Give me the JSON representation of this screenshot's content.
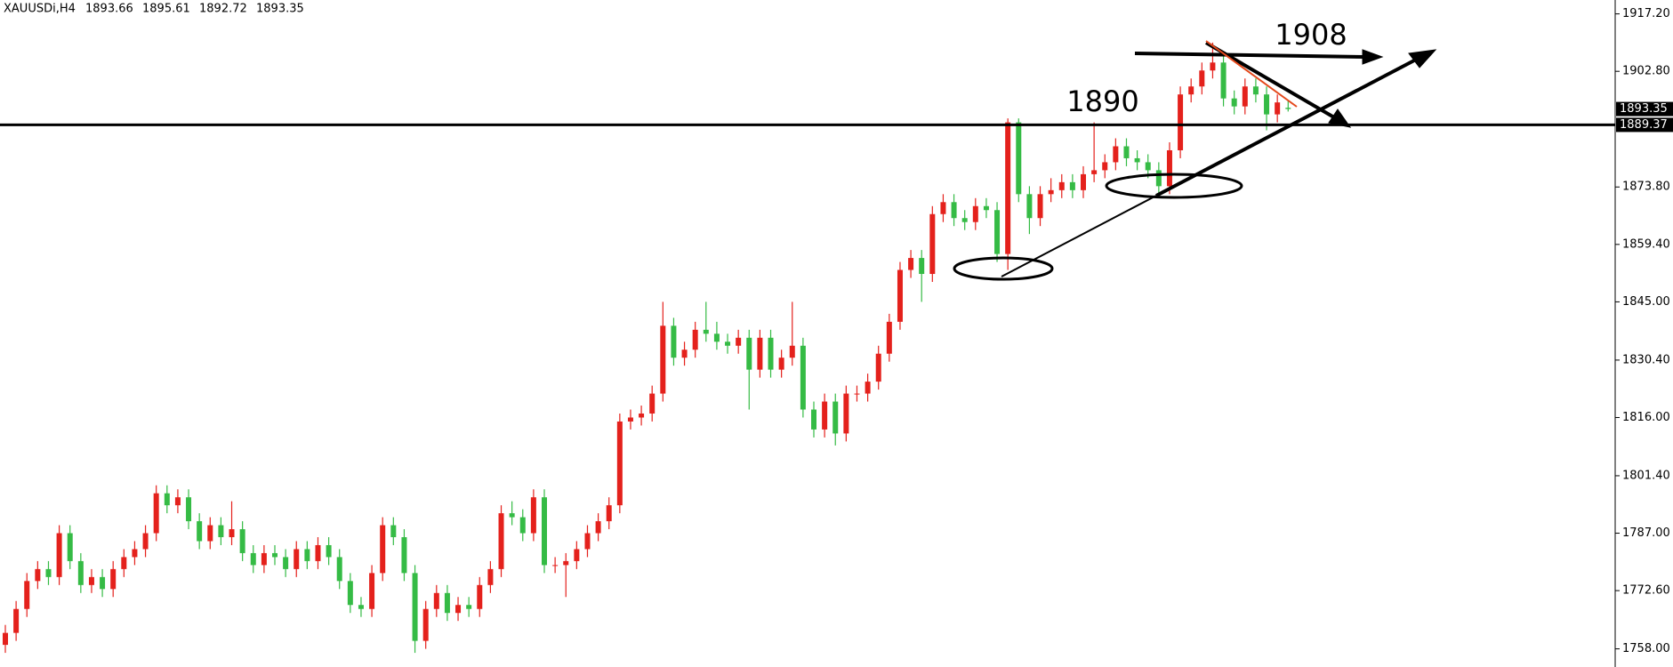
{
  "chart_data": {
    "type": "candlestick",
    "symbol": "XAUUSDi,H4",
    "up_color": "#e4211c",
    "down_color": "#35bb45",
    "ylim": [
      1753.45,
      1920.68
    ],
    "yticks": [
      {
        "value": 1917.2,
        "label": "1917.20"
      },
      {
        "value": 1902.8,
        "label": "1902.80"
      },
      {
        "value": 1873.8,
        "label": "1873.80"
      },
      {
        "value": 1859.4,
        "label": "1859.40"
      },
      {
        "value": 1845.0,
        "label": "1845.00"
      },
      {
        "value": 1830.4,
        "label": "1830.40"
      },
      {
        "value": 1816.0,
        "label": "1816.00"
      },
      {
        "value": 1801.4,
        "label": "1801.40"
      },
      {
        "value": 1787.0,
        "label": "1787.00"
      },
      {
        "value": 1772.6,
        "label": "1772.60"
      },
      {
        "value": 1758.0,
        "label": "1758.00"
      }
    ],
    "hline": 1889.37,
    "annotations": [
      "1890",
      "1908"
    ],
    "open": [
      1759,
      1762,
      1768,
      1775,
      1778,
      1776,
      1787,
      1780,
      1774,
      1776,
      1773,
      1778,
      1781,
      1783,
      1787,
      1797,
      1794,
      1796,
      1790,
      1785,
      1789,
      1786,
      1788,
      1782,
      1779,
      1782,
      1781,
      1778,
      1783,
      1780,
      1784,
      1781,
      1775,
      1769,
      1768,
      1777,
      1789,
      1786,
      1777,
      1760,
      1768,
      1772,
      1767,
      1769,
      1768,
      1774,
      1778,
      1792,
      1791,
      1787,
      1796,
      1779,
      1779,
      1780,
      1783,
      1787,
      1790,
      1794,
      1815,
      1816,
      1817,
      1822,
      1839,
      1831,
      1833,
      1838,
      1837,
      1835,
      1834,
      1836,
      1828,
      1836,
      1828,
      1831,
      1834,
      1818,
      1813,
      1820,
      1812,
      1822,
      1822,
      1825,
      1832,
      1840,
      1853,
      1856,
      1852,
      1867,
      1870,
      1866,
      1865,
      1869,
      1868,
      1857,
      1890,
      1872,
      1866,
      1872,
      1873,
      1875,
      1873,
      1877,
      1878,
      1880,
      1884,
      1881,
      1880,
      1878,
      1874,
      1883,
      1897,
      1899,
      1903,
      1905,
      1896,
      1894,
      1899,
      1897,
      1892,
      1893.66
    ],
    "high": [
      1764,
      1770,
      1777,
      1780,
      1780,
      1789,
      1789,
      1782,
      1778,
      1778,
      1780,
      1783,
      1785,
      1789,
      1799,
      1799,
      1798,
      1798,
      1792,
      1791,
      1791,
      1795,
      1790,
      1784,
      1784,
      1784,
      1783,
      1785,
      1785,
      1786,
      1786,
      1783,
      1777,
      1771,
      1779,
      1791,
      1791,
      1788,
      1779,
      1770,
      1774,
      1774,
      1771,
      1771,
      1776,
      1780,
      1794,
      1795,
      1793,
      1798,
      1798,
      1781,
      1782,
      1785,
      1789,
      1792,
      1796,
      1817,
      1818,
      1819,
      1824,
      1845,
      1841,
      1835,
      1840,
      1845,
      1840,
      1837,
      1838,
      1838,
      1838,
      1838,
      1833,
      1845,
      1836,
      1820,
      1822,
      1822,
      1824,
      1824,
      1827,
      1834,
      1842,
      1855,
      1858,
      1858,
      1869,
      1872,
      1872,
      1868,
      1871,
      1871,
      1870,
      1891,
      1891,
      1874,
      1874,
      1876,
      1877,
      1877,
      1879,
      1890,
      1882,
      1886,
      1886,
      1883,
      1882,
      1880,
      1885,
      1899,
      1901,
      1905,
      1910,
      1907,
      1898,
      1901,
      1901,
      1899,
      1897,
      1895.61
    ],
    "low": [
      1757,
      1760,
      1766,
      1773,
      1774,
      1774,
      1778,
      1772,
      1772,
      1771,
      1771,
      1776,
      1779,
      1781,
      1785,
      1792,
      1792,
      1788,
      1783,
      1783,
      1784,
      1784,
      1780,
      1777,
      1777,
      1779,
      1776,
      1776,
      1778,
      1778,
      1779,
      1773,
      1767,
      1766,
      1766,
      1775,
      1784,
      1775,
      1757,
      1758,
      1766,
      1765,
      1765,
      1766,
      1766,
      1772,
      1776,
      1789,
      1785,
      1785,
      1777,
      1777,
      1771,
      1778,
      1781,
      1785,
      1788,
      1792,
      1813,
      1814,
      1815,
      1820,
      1829,
      1829,
      1831,
      1835,
      1833,
      1832,
      1832,
      1818,
      1826,
      1826,
      1826,
      1829,
      1816,
      1811,
      1811,
      1809,
      1810,
      1820,
      1820,
      1823,
      1830,
      1838,
      1851,
      1845,
      1850,
      1865,
      1864,
      1863,
      1863,
      1866,
      1855,
      1853,
      1870,
      1862,
      1864,
      1870,
      1871,
      1871,
      1871,
      1875,
      1876,
      1878,
      1879,
      1878,
      1876,
      1872,
      1872,
      1881,
      1895,
      1897,
      1901,
      1894,
      1892,
      1892,
      1895,
      1888,
      1890,
      1892.72
    ],
    "close": [
      1762,
      1768,
      1775,
      1778,
      1776,
      1787,
      1780,
      1774,
      1776,
      1773,
      1778,
      1781,
      1783,
      1787,
      1797,
      1794,
      1796,
      1790,
      1785,
      1789,
      1786,
      1788,
      1782,
      1779,
      1782,
      1781,
      1778,
      1783,
      1780,
      1784,
      1781,
      1775,
      1769,
      1768,
      1777,
      1789,
      1786,
      1777,
      1760,
      1768,
      1772,
      1767,
      1769,
      1768,
      1774,
      1778,
      1792,
      1791,
      1787,
      1796,
      1779,
      1779,
      1780,
      1783,
      1787,
      1790,
      1794,
      1815,
      1816,
      1817,
      1822,
      1839,
      1831,
      1833,
      1838,
      1837,
      1835,
      1834,
      1836,
      1828,
      1836,
      1828,
      1831,
      1834,
      1818,
      1813,
      1820,
      1812,
      1822,
      1822,
      1825,
      1832,
      1840,
      1853,
      1856,
      1852,
      1867,
      1870,
      1866,
      1865,
      1869,
      1868,
      1857,
      1890,
      1872,
      1866,
      1872,
      1873,
      1875,
      1873,
      1877,
      1878,
      1880,
      1884,
      1881,
      1880,
      1878,
      1874,
      1883,
      1897,
      1899,
      1903,
      1905,
      1896,
      1894,
      1899,
      1897,
      1892,
      1895,
      1893.35
    ]
  }
}
